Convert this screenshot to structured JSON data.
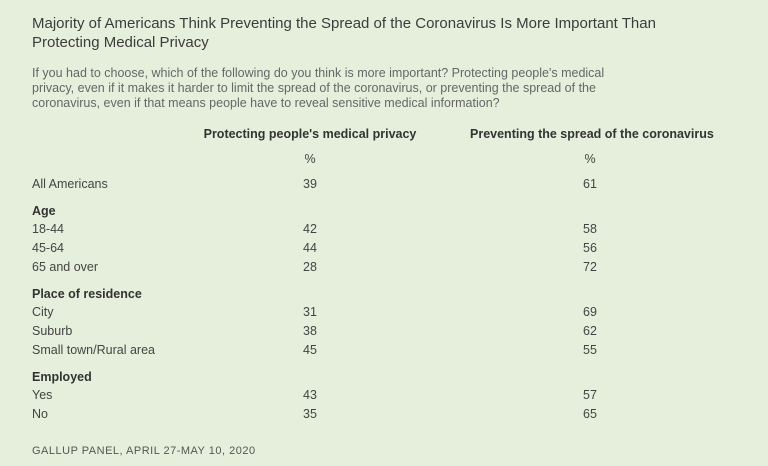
{
  "title": "Majority of Americans Think Preventing the Spread of the Coronavirus Is More Important Than Protecting Medical Privacy",
  "question": "If you had to choose, which of the following do you think is more important? Protecting people's medical privacy, even if it makes it harder to limit the spread of the coronavirus, or preventing the spread of the coronavirus, even if that means people have to reveal sensitive medical information?",
  "columns": [
    {
      "header": "Protecting people's medical privacy",
      "unit": "%"
    },
    {
      "header": "Preventing the spread of the coronavirus",
      "unit": "%"
    }
  ],
  "overall": {
    "label": "All Americans",
    "v1": "39",
    "v2": "61"
  },
  "sections": {
    "age": {
      "title": "Age",
      "rows": [
        {
          "label": "18-44",
          "v1": "42",
          "v2": "58"
        },
        {
          "label": "45-64",
          "v1": "44",
          "v2": "56"
        },
        {
          "label": "65 and over",
          "v1": "28",
          "v2": "72"
        }
      ]
    },
    "residence": {
      "title": "Place of residence",
      "rows": [
        {
          "label": "City",
          "v1": "31",
          "v2": "69"
        },
        {
          "label": "Suburb",
          "v1": "38",
          "v2": "62"
        },
        {
          "label": "Small town/Rural area",
          "v1": "45",
          "v2": "55"
        }
      ]
    },
    "employed": {
      "title": "Employed",
      "rows": [
        {
          "label": "Yes",
          "v1": "43",
          "v2": "57"
        },
        {
          "label": "No",
          "v1": "35",
          "v2": "65"
        }
      ]
    }
  },
  "source": "GALLUP PANEL, APRIL 27-MAY 10, 2020"
}
